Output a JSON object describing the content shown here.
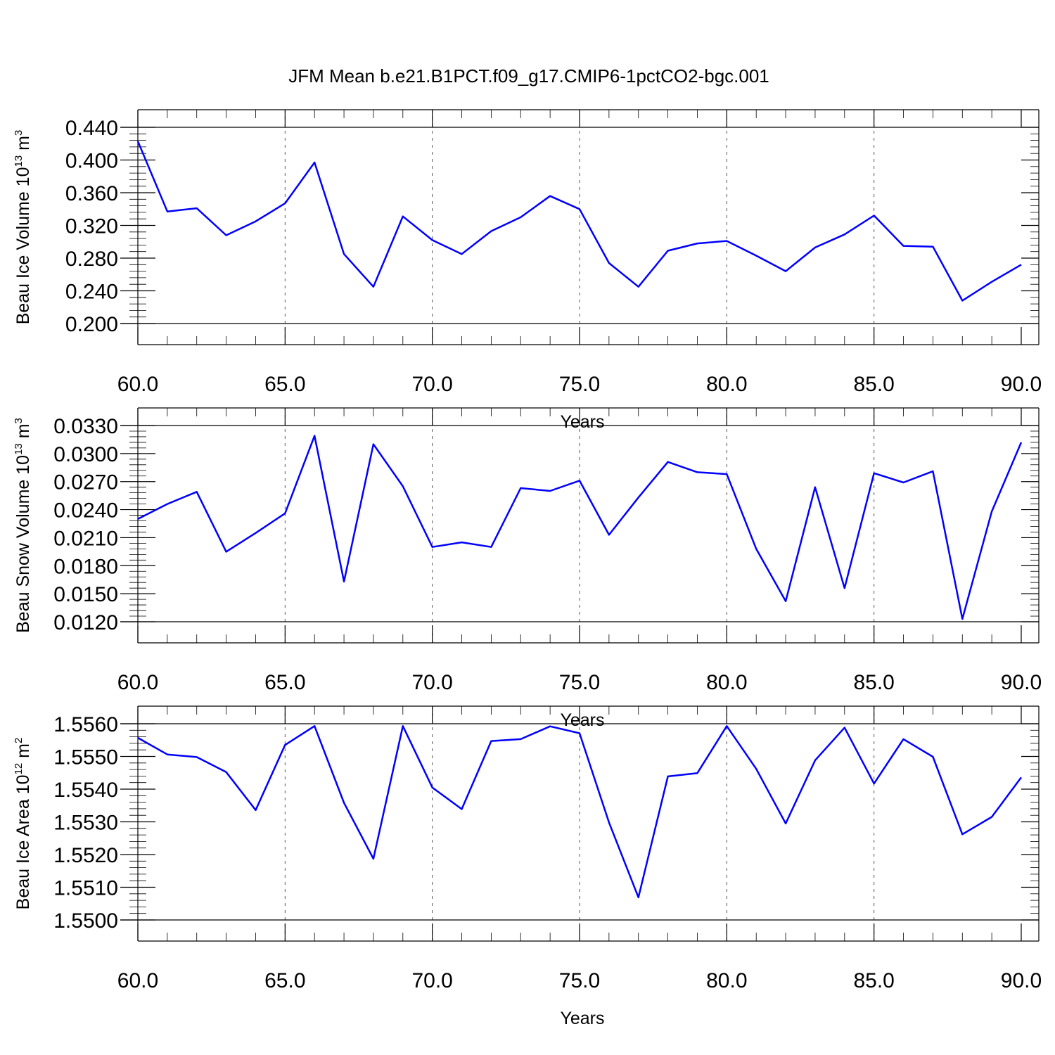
{
  "title": "JFM Mean b.e21.B1PCT.f09_g17.CMIP6-1pctCO2-bgc.001",
  "chart_data": [
    {
      "type": "line",
      "ylabel_main": "Beau Ice Volume 10",
      "ylabel_exp": "13",
      "ylabel_unit": " m",
      "ylabel_unit_exp": "3",
      "xlabel": "Years",
      "xlim": [
        60,
        90
      ],
      "ylim": [
        0.2,
        0.44
      ],
      "xticks": [
        60,
        65,
        70,
        75,
        80,
        85,
        90
      ],
      "xtick_labels": [
        "60.0",
        "65.0",
        "70.0",
        "75.0",
        "80.0",
        "85.0",
        "90.0"
      ],
      "yticks": [
        0.2,
        0.24,
        0.28,
        0.32,
        0.36,
        0.4,
        0.44
      ],
      "ytick_labels": [
        "0.200",
        "0.240",
        "0.280",
        "0.320",
        "0.360",
        "0.400",
        "0.440"
      ],
      "grid": "vertical dashed at major x ticks",
      "color": "#0000ff",
      "x": [
        60,
        61,
        62,
        63,
        64,
        65,
        66,
        67,
        68,
        69,
        70,
        71,
        72,
        73,
        74,
        75,
        76,
        77,
        78,
        79,
        80,
        81,
        82,
        83,
        84,
        85,
        86,
        87,
        88,
        89,
        90
      ],
      "y": [
        0.423,
        0.337,
        0.341,
        0.308,
        0.325,
        0.347,
        0.397,
        0.285,
        0.245,
        0.331,
        0.302,
        0.285,
        0.313,
        0.33,
        0.356,
        0.34,
        0.274,
        0.245,
        0.289,
        0.298,
        0.301,
        0.283,
        0.264,
        0.293,
        0.309,
        0.332,
        0.295,
        0.294,
        0.228,
        0.251,
        0.272
      ]
    },
    {
      "type": "line",
      "ylabel_main": "Beau Snow Volume 10",
      "ylabel_exp": "13",
      "ylabel_unit": " m",
      "ylabel_unit_exp": "3",
      "xlabel": "Years",
      "xlim": [
        60,
        90
      ],
      "ylim": [
        0.012,
        0.033
      ],
      "xticks": [
        60,
        65,
        70,
        75,
        80,
        85,
        90
      ],
      "xtick_labels": [
        "60.0",
        "65.0",
        "70.0",
        "75.0",
        "80.0",
        "85.0",
        "90.0"
      ],
      "yticks": [
        0.012,
        0.015,
        0.018,
        0.021,
        0.024,
        0.027,
        0.03,
        0.033
      ],
      "ytick_labels": [
        "0.0120",
        "0.0150",
        "0.0180",
        "0.0210",
        "0.0240",
        "0.0270",
        "0.0300",
        "0.0330"
      ],
      "grid": "vertical dashed at major x ticks",
      "color": "#0000ff",
      "x": [
        60,
        61,
        62,
        63,
        64,
        65,
        66,
        67,
        68,
        69,
        70,
        71,
        72,
        73,
        74,
        75,
        76,
        77,
        78,
        79,
        80,
        81,
        82,
        83,
        84,
        85,
        86,
        87,
        88,
        89,
        90
      ],
      "y": [
        0.023,
        0.0246,
        0.0259,
        0.0195,
        0.0215,
        0.0236,
        0.0319,
        0.0163,
        0.031,
        0.0265,
        0.02,
        0.0205,
        0.02,
        0.0263,
        0.026,
        0.0271,
        0.0213,
        0.0253,
        0.0291,
        0.028,
        0.0278,
        0.0198,
        0.0142,
        0.0264,
        0.0156,
        0.0279,
        0.0269,
        0.0281,
        0.0123,
        0.0238,
        0.0312
      ]
    },
    {
      "type": "line",
      "ylabel_main": "Beau Ice Area 10",
      "ylabel_exp": "12",
      "ylabel_unit": " m",
      "ylabel_unit_exp": "2",
      "xlabel": "Years",
      "xlim": [
        60,
        90
      ],
      "ylim": [
        1.55,
        1.556
      ],
      "xticks": [
        60,
        65,
        70,
        75,
        80,
        85,
        90
      ],
      "xtick_labels": [
        "60.0",
        "65.0",
        "70.0",
        "75.0",
        "80.0",
        "85.0",
        "90.0"
      ],
      "yticks": [
        1.55,
        1.551,
        1.552,
        1.553,
        1.554,
        1.555,
        1.556
      ],
      "ytick_labels": [
        "1.5500",
        "1.5510",
        "1.5520",
        "1.5530",
        "1.5540",
        "1.5550",
        "1.5560"
      ],
      "grid": "vertical dashed at major x ticks",
      "color": "#0000ff",
      "x": [
        60,
        61,
        62,
        63,
        64,
        65,
        66,
        67,
        68,
        69,
        70,
        71,
        72,
        73,
        74,
        75,
        76,
        77,
        78,
        79,
        80,
        81,
        82,
        83,
        84,
        85,
        86,
        87,
        88,
        89,
        90
      ],
      "y": [
        1.55557,
        1.55506,
        1.55498,
        1.55452,
        1.55336,
        1.55535,
        1.55593,
        1.55358,
        1.55187,
        1.55593,
        1.55405,
        1.55339,
        1.55547,
        1.55553,
        1.55592,
        1.55571,
        1.55298,
        1.55069,
        1.55439,
        1.55449,
        1.55593,
        1.55462,
        1.55295,
        1.55488,
        1.55588,
        1.55417,
        1.55553,
        1.55499,
        1.55262,
        1.55315,
        1.55436
      ]
    }
  ]
}
